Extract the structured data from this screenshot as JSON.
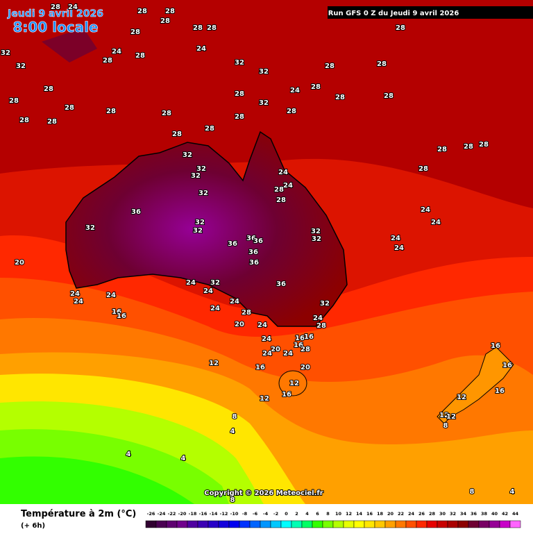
{
  "header": {
    "date": "Jeudi 9 avril 2026",
    "time": "8:00 locale",
    "run": "Run GFS 0 Z du Jeudi 9 avril 2026"
  },
  "copyright": "Copyright © 2026 Meteociel.fr",
  "legend": {
    "title": "Température à 2m (°C)",
    "subtitle": "(+ 6h)",
    "ticks": [
      -26,
      -24,
      -22,
      -20,
      -18,
      -16,
      -14,
      -12,
      -10,
      -8,
      -6,
      -4,
      -2,
      0,
      2,
      4,
      6,
      8,
      10,
      12,
      14,
      16,
      18,
      20,
      22,
      24,
      26,
      28,
      30,
      32,
      34,
      36,
      38,
      40,
      42,
      44
    ],
    "colors": [
      "#300030",
      "#4a0052",
      "#5e0070",
      "#70008c",
      "#5000a0",
      "#3c00b4",
      "#2800c8",
      "#1400dc",
      "#0000f0",
      "#0032ff",
      "#0064ff",
      "#0096ff",
      "#00c8ff",
      "#00ffff",
      "#00ffb4",
      "#00ff64",
      "#32ff00",
      "#78ff00",
      "#b4ff00",
      "#e6ff00",
      "#ffff00",
      "#ffe600",
      "#ffc800",
      "#ffa000",
      "#ff7800",
      "#ff5000",
      "#ff2800",
      "#e60000",
      "#c80000",
      "#aa0000",
      "#8c0000",
      "#6e0032",
      "#780064",
      "#960096",
      "#c800c8",
      "#ff64ff"
    ]
  },
  "labels": [
    28,
    24,
    28,
    28,
    28,
    28,
    28,
    28,
    28,
    32,
    32,
    24,
    28,
    28,
    24,
    32,
    32,
    28,
    28,
    28,
    28,
    28,
    28,
    28,
    28,
    32,
    24,
    28,
    28,
    28,
    28,
    28,
    28,
    28,
    28,
    28,
    28,
    28,
    28,
    28,
    32,
    32,
    32,
    32,
    24,
    24,
    28,
    28,
    36,
    32,
    32,
    32,
    24,
    24,
    24,
    24,
    32,
    32,
    36,
    36,
    36,
    36,
    36,
    36,
    20,
    24,
    32,
    24,
    24,
    24,
    24,
    24,
    28,
    32,
    24,
    16,
    16,
    20,
    24,
    24,
    28,
    24,
    16,
    16,
    16,
    20,
    24,
    24,
    28,
    16,
    16,
    12,
    16,
    20,
    12,
    16,
    12,
    16,
    12,
    12,
    12,
    8,
    8,
    4,
    4,
    4,
    8,
    8,
    4
  ]
}
